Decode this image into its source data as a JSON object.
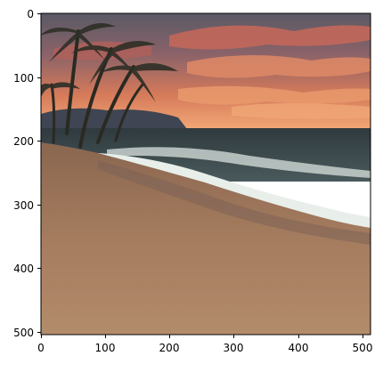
{
  "figure": {
    "image_subject": "tropical beach sunset painting with palm trees",
    "x_axis": {
      "ticks": [
        "0",
        "100",
        "200",
        "300",
        "400",
        "500"
      ],
      "range": [
        0,
        512
      ]
    },
    "y_axis": {
      "ticks": [
        "0",
        "100",
        "200",
        "300",
        "400",
        "500"
      ],
      "range": [
        0,
        512
      ]
    }
  },
  "colors": {
    "sky_top": "#5a5866",
    "sky_mid": "#c96a52",
    "horizon_glow": "#f0a070",
    "sea": "#3b4a4e",
    "wave_foam": "#e6ece8",
    "sand_wet": "#8c6a52",
    "sand_dry": "#b08a6a",
    "palm": "#2a2a22"
  }
}
